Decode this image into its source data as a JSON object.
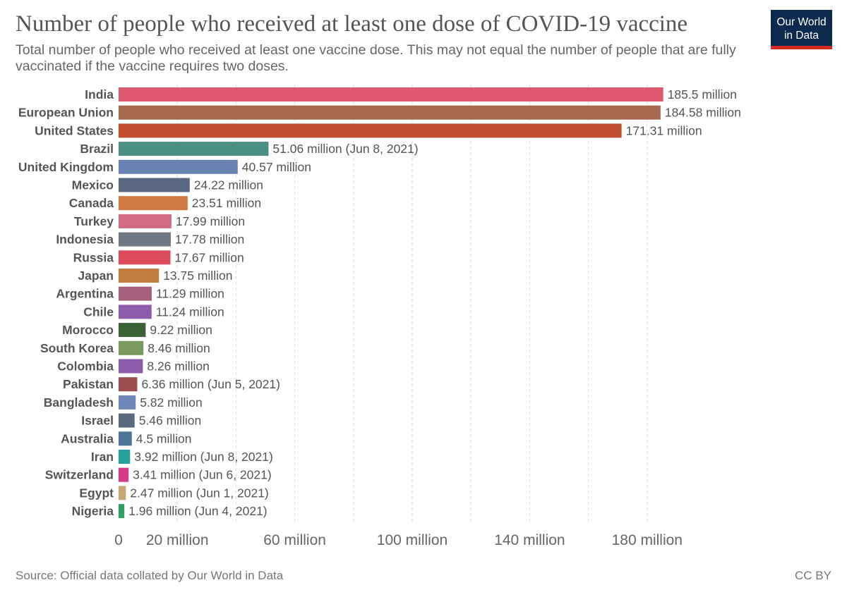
{
  "header": {
    "title": "Number of people who received at least one dose of COVID-19 vaccine",
    "subtitle": "Total number of people who received at least one vaccine dose. This may not equal the number of people that are fully vaccinated if the vaccine requires two doses."
  },
  "logo": {
    "line1": "Our World",
    "line2": "in Data"
  },
  "footer": {
    "source": "Source: Official data collated by Our World in Data",
    "license": "CC BY"
  },
  "chart_data": {
    "type": "bar",
    "orientation": "horizontal",
    "title": "Number of people who received at least one dose of COVID-19 vaccine",
    "subtitle": "Total number of people who received at least one vaccine dose. This may not equal the number of people that are fully vaccinated if the vaccine requires two doses.",
    "xlim": [
      0,
      200
    ],
    "x_unit": "million",
    "x_ticks": [
      {
        "value": 0,
        "label": "0"
      },
      {
        "value": 20,
        "label": "20 million"
      },
      {
        "value": 60,
        "label": "60 million"
      },
      {
        "value": 100,
        "label": "100 million"
      },
      {
        "value": 140,
        "label": "140 million"
      },
      {
        "value": 180,
        "label": "180 million"
      }
    ],
    "gridlines": [
      20,
      40,
      60,
      80,
      100,
      120,
      140,
      160,
      180
    ],
    "grid": true,
    "categories": [
      "India",
      "European Union",
      "United States",
      "Brazil",
      "United Kingdom",
      "Mexico",
      "Canada",
      "Turkey",
      "Indonesia",
      "Russia",
      "Japan",
      "Argentina",
      "Chile",
      "Morocco",
      "South Korea",
      "Colombia",
      "Pakistan",
      "Bangladesh",
      "Israel",
      "Australia",
      "Iran",
      "Switzerland",
      "Egypt",
      "Nigeria"
    ],
    "values": [
      185.5,
      184.58,
      171.31,
      51.06,
      40.57,
      24.22,
      23.51,
      17.99,
      17.78,
      17.67,
      13.75,
      11.29,
      11.24,
      9.22,
      8.46,
      8.26,
      6.36,
      5.82,
      5.46,
      4.5,
      3.92,
      3.41,
      2.47,
      1.96
    ],
    "labels": [
      "185.5 million",
      "184.58 million",
      "171.31 million",
      "51.06 million (Jun 8, 2021)",
      "40.57 million",
      "24.22 million",
      "23.51 million",
      "17.99 million",
      "17.78 million",
      "17.67 million",
      "13.75 million",
      "11.29 million",
      "11.24 million",
      "9.22 million",
      "8.46 million",
      "8.26 million",
      "6.36 million (Jun 5, 2021)",
      "5.82 million",
      "5.46 million",
      "4.5 million",
      "3.92 million (Jun 8, 2021)",
      "3.41 million (Jun 6, 2021)",
      "2.47 million (Jun 1, 2021)",
      "1.96 million (Jun 4, 2021)"
    ],
    "colors": [
      "#de5870",
      "#a7694d",
      "#c24e2f",
      "#4a8e84",
      "#6883b3",
      "#5a6780",
      "#cf7842",
      "#d06b82",
      "#707883",
      "#dd4b5d",
      "#c17c3d",
      "#a5607e",
      "#8c5baa",
      "#3a6234",
      "#79995f",
      "#8c5cab",
      "#9d4c4e",
      "#6f86b8",
      "#5a6a7f",
      "#4d7496",
      "#25a19a",
      "#d63a84",
      "#c8a576",
      "#2ea063"
    ]
  }
}
